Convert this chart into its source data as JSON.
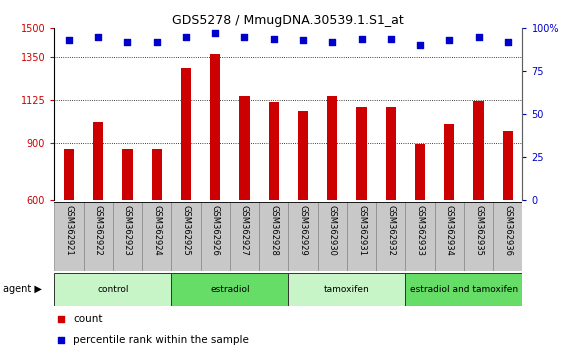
{
  "title": "GDS5278 / MmugDNA.30539.1.S1_at",
  "samples": [
    "GSM362921",
    "GSM362922",
    "GSM362923",
    "GSM362924",
    "GSM362925",
    "GSM362926",
    "GSM362927",
    "GSM362928",
    "GSM362929",
    "GSM362930",
    "GSM362931",
    "GSM362932",
    "GSM362933",
    "GSM362934",
    "GSM362935",
    "GSM362936"
  ],
  "counts": [
    870,
    1010,
    870,
    865,
    1290,
    1365,
    1145,
    1115,
    1065,
    1145,
    1090,
    1090,
    895,
    1000,
    1120,
    960
  ],
  "percentile_ranks": [
    93,
    95,
    92,
    92,
    95,
    97,
    95,
    94,
    93,
    92,
    94,
    94,
    90,
    93,
    95,
    92
  ],
  "ylim_left": [
    600,
    1500
  ],
  "ylim_right": [
    0,
    100
  ],
  "yticks_left": [
    600,
    900,
    1125,
    1350,
    1500
  ],
  "yticks_right": [
    0,
    25,
    50,
    75,
    100
  ],
  "groups": [
    {
      "label": "control",
      "start": 0,
      "end": 4,
      "color": "#c8f5c8"
    },
    {
      "label": "estradiol",
      "start": 4,
      "end": 8,
      "color": "#66dd66"
    },
    {
      "label": "tamoxifen",
      "start": 8,
      "end": 12,
      "color": "#c8f5c8"
    },
    {
      "label": "estradiol and tamoxifen",
      "start": 12,
      "end": 16,
      "color": "#66dd66"
    }
  ],
  "bar_color": "#cc0000",
  "dot_color": "#0000cc",
  "bar_bottom": 600,
  "legend_count_color": "#cc0000",
  "legend_pct_color": "#0000cc",
  "grid_color": "black",
  "tick_label_color_left": "#cc0000",
  "tick_label_color_right": "#0000cc",
  "sample_box_color": "#c8c8c8",
  "sample_box_edge_color": "#888888"
}
